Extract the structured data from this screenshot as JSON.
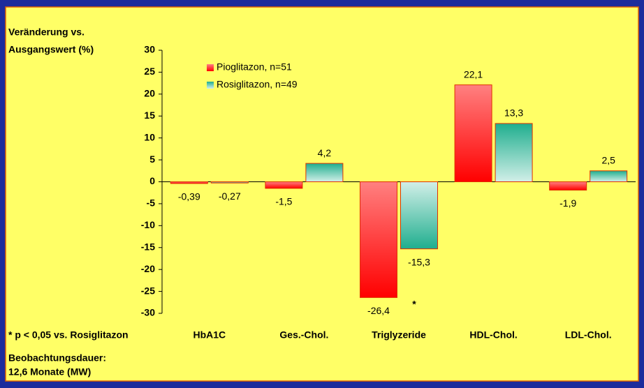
{
  "chart_data": {
    "type": "bar",
    "y_axis_label": [
      "Veränderung vs.",
      "Ausgangswert (%)"
    ],
    "categories": [
      "HbA1C",
      "Ges.-Chol.",
      "Triglyzeride",
      "HDL-Chol.",
      "LDL-Chol."
    ],
    "series": [
      {
        "name": "Pioglitazon, n=51",
        "color": "#ff0000",
        "values": [
          -0.39,
          -1.5,
          -26.4,
          22.1,
          -1.9
        ],
        "value_labels": [
          "-0,39",
          "-1,5",
          "-26,4",
          "22,1",
          "-1,9"
        ]
      },
      {
        "name": "Rosiglitazon, n=49",
        "color": "#1fae8e",
        "values": [
          -0.27,
          4.2,
          -15.3,
          13.3,
          2.5
        ],
        "value_labels": [
          "-0,27",
          "4,2",
          "-15,3",
          "13,3",
          "2,5"
        ]
      }
    ],
    "ylim": [
      -30,
      30
    ],
    "yticks": [
      -30,
      -25,
      -20,
      -15,
      -10,
      -5,
      0,
      5,
      10,
      15,
      20,
      25,
      30
    ],
    "annotation": "*",
    "footnotes": [
      "* p < 0,05 vs. Rosiglitazon",
      "Beobachtungsdauer:",
      "12,6 Monate (MW)"
    ]
  }
}
